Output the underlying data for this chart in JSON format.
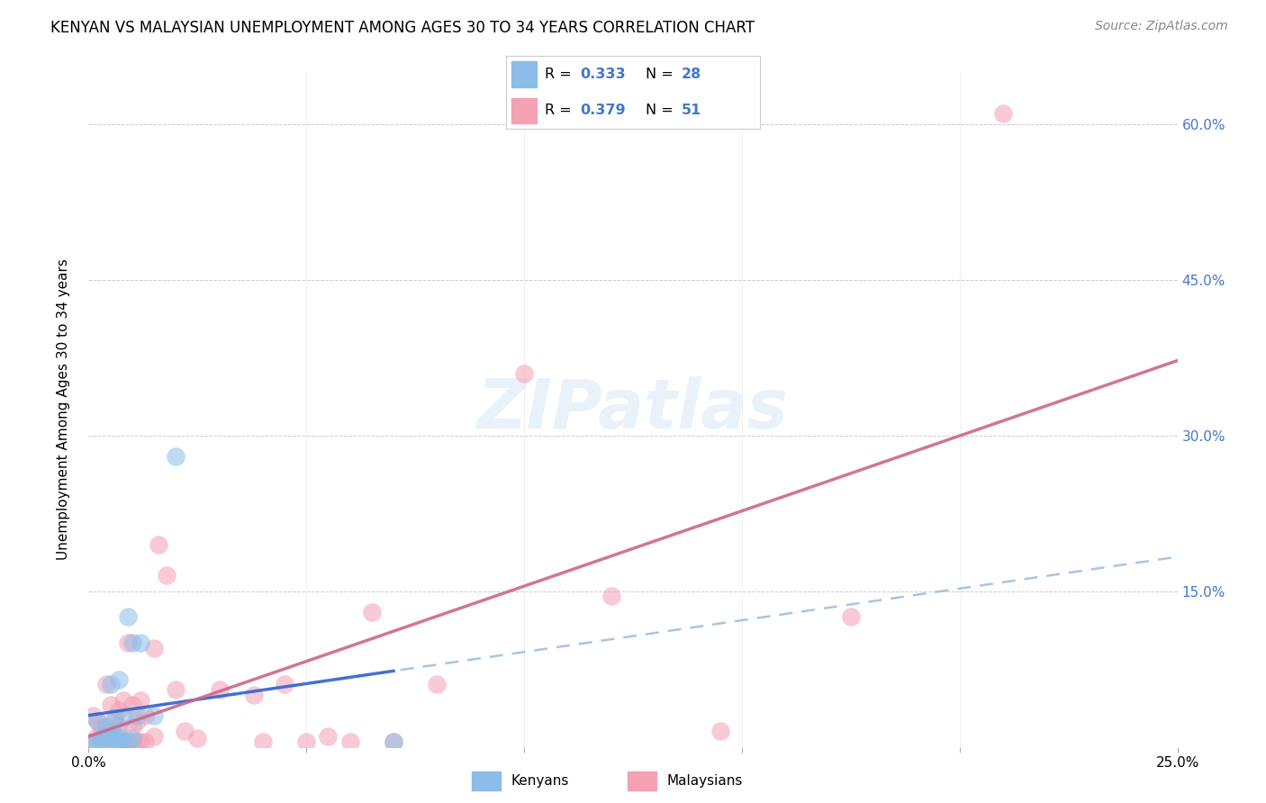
{
  "title": "KENYAN VS MALAYSIAN UNEMPLOYMENT AMONG AGES 30 TO 34 YEARS CORRELATION CHART",
  "source": "Source: ZipAtlas.com",
  "ylabel": "Unemployment Among Ages 30 to 34 years",
  "xlim": [
    0.0,
    0.25
  ],
  "ylim": [
    0.0,
    0.65
  ],
  "x_tick_positions": [
    0.0,
    0.05,
    0.1,
    0.15,
    0.2,
    0.25
  ],
  "x_tick_labels": [
    "0.0%",
    "",
    "",
    "",
    "",
    "25.0%"
  ],
  "y_tick_positions": [
    0.0,
    0.15,
    0.3,
    0.45,
    0.6
  ],
  "y_tick_labels_right": [
    "",
    "15.0%",
    "30.0%",
    "45.0%",
    "60.0%"
  ],
  "kenya_R": "0.333",
  "kenya_N": "28",
  "malaysia_R": "0.379",
  "malaysia_N": "51",
  "kenya_scatter_color": "#8bbde8",
  "malaysia_scatter_color": "#f4a0b5",
  "kenya_line_solid_color": "#3366cc",
  "kenya_line_dash_color": "#99bbdd",
  "malaysia_line_color": "#cc6688",
  "legend_text_color": "#4477cc",
  "watermark_color": "#c8dff0",
  "kenya_scatter_x": [
    0.001,
    0.002,
    0.002,
    0.003,
    0.003,
    0.004,
    0.004,
    0.004,
    0.005,
    0.005,
    0.005,
    0.006,
    0.006,
    0.006,
    0.007,
    0.007,
    0.007,
    0.008,
    0.008,
    0.009,
    0.009,
    0.01,
    0.01,
    0.011,
    0.012,
    0.015,
    0.02,
    0.07
  ],
  "kenya_scatter_y": [
    0.005,
    0.003,
    0.025,
    0.005,
    0.01,
    0.005,
    0.01,
    0.02,
    0.008,
    0.015,
    0.06,
    0.005,
    0.012,
    0.028,
    0.005,
    0.01,
    0.065,
    0.005,
    0.028,
    0.005,
    0.125,
    0.008,
    0.1,
    0.03,
    0.1,
    0.03,
    0.28,
    0.005
  ],
  "malaysia_scatter_x": [
    0.001,
    0.001,
    0.002,
    0.002,
    0.003,
    0.003,
    0.004,
    0.004,
    0.005,
    0.005,
    0.005,
    0.006,
    0.006,
    0.007,
    0.007,
    0.007,
    0.008,
    0.008,
    0.009,
    0.009,
    0.01,
    0.01,
    0.01,
    0.011,
    0.011,
    0.012,
    0.012,
    0.013,
    0.013,
    0.015,
    0.015,
    0.016,
    0.018,
    0.02,
    0.022,
    0.025,
    0.03,
    0.038,
    0.04,
    0.045,
    0.05,
    0.055,
    0.06,
    0.065,
    0.07,
    0.08,
    0.1,
    0.12,
    0.145,
    0.175,
    0.21
  ],
  "malaysia_scatter_y": [
    0.005,
    0.03,
    0.01,
    0.025,
    0.01,
    0.018,
    0.01,
    0.06,
    0.01,
    0.02,
    0.04,
    0.01,
    0.025,
    0.005,
    0.02,
    0.035,
    0.005,
    0.045,
    0.005,
    0.1,
    0.005,
    0.02,
    0.04,
    0.005,
    0.025,
    0.005,
    0.045,
    0.005,
    0.03,
    0.01,
    0.095,
    0.195,
    0.165,
    0.055,
    0.015,
    0.008,
    0.055,
    0.05,
    0.005,
    0.06,
    0.005,
    0.01,
    0.005,
    0.13,
    0.005,
    0.06,
    0.36,
    0.145,
    0.015,
    0.125,
    0.61
  ],
  "watermark": "ZIPatlas",
  "background_color": "#ffffff",
  "grid_color": "#cccccc"
}
